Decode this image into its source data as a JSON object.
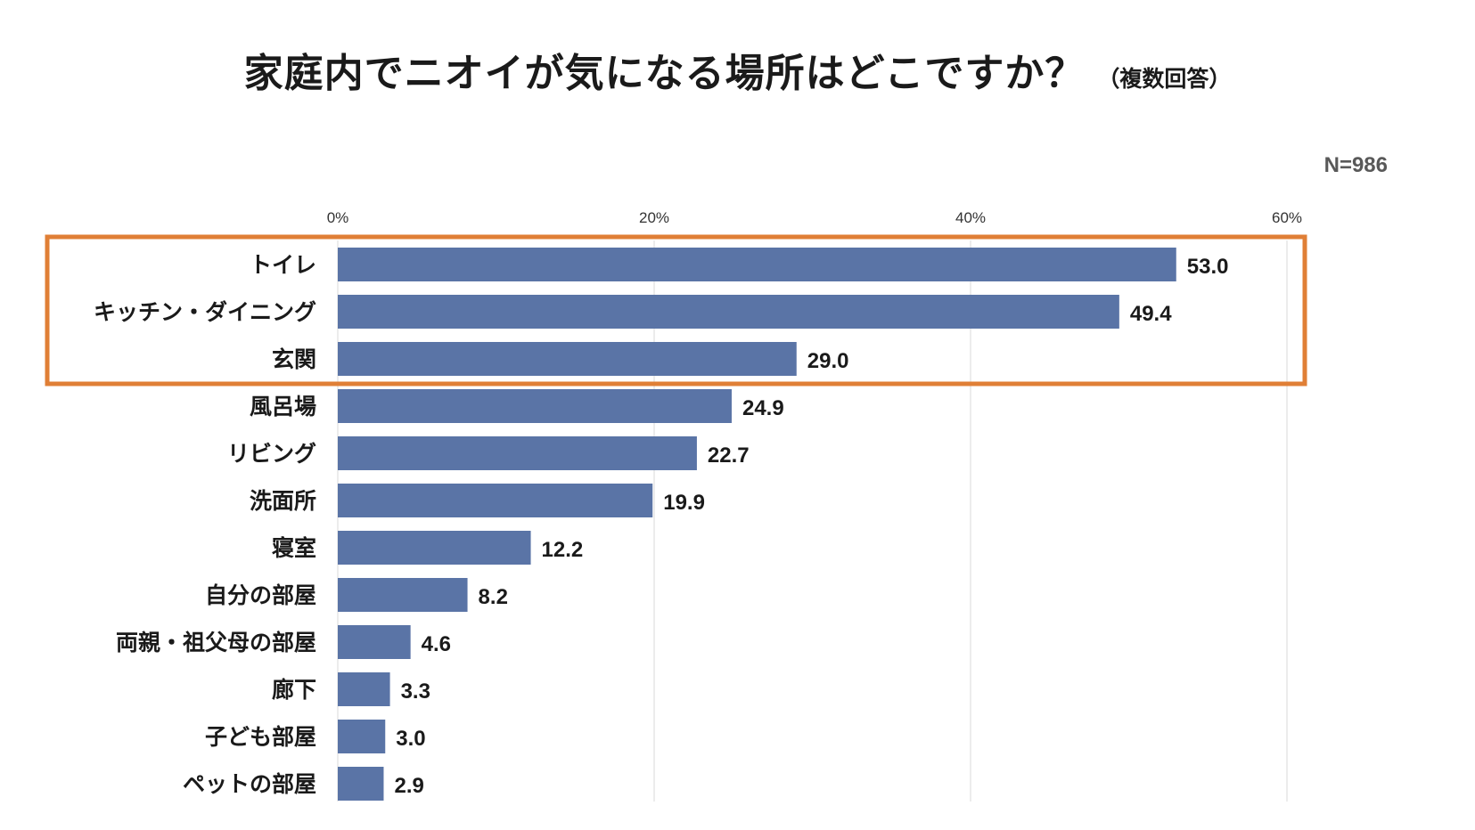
{
  "chart_data": {
    "type": "bar",
    "orientation": "horizontal",
    "title": "家庭内でニオイが気になる場所はどこですか？",
    "subtitle": "（複数回答）",
    "sample_size": "N=986",
    "xlim": [
      0,
      60
    ],
    "ticks": [
      0,
      20,
      40,
      60
    ],
    "tick_labels": [
      "0%",
      "20%",
      "40%",
      "60%"
    ],
    "categories": [
      "トイレ",
      "キッチン・ダイニング",
      "玄関",
      "風呂場",
      "リビング",
      "洗面所",
      "寝室",
      "自分の部屋",
      "両親・祖父母の部屋",
      "廊下",
      "子ども部屋",
      "ペットの部屋"
    ],
    "values": [
      53.0,
      49.4,
      29.0,
      24.9,
      22.7,
      19.9,
      12.2,
      8.2,
      4.6,
      3.3,
      3.0,
      2.9
    ],
    "value_labels": [
      "53.0",
      "49.4",
      "29.0",
      "24.9",
      "22.7",
      "19.9",
      "12.2",
      "8.2",
      "4.6",
      "3.3",
      "3.0",
      "2.9"
    ],
    "highlighted_categories": [
      "トイレ",
      "キッチン・ダイニング",
      "玄関"
    ],
    "bar_color": "#5a74a6",
    "highlight_color": "#e07f36",
    "gridline_color": "#d9d9d9",
    "grid": true
  }
}
